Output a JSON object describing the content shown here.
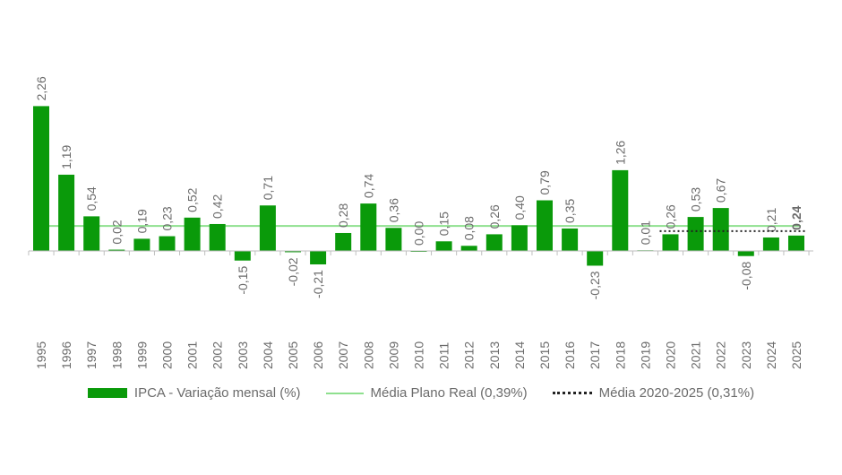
{
  "chart_data": {
    "type": "bar",
    "title": "",
    "xlabel": "",
    "ylabel": "",
    "ylim": [
      -0.23,
      2.26
    ],
    "grid": false,
    "legend_position": "bottom",
    "categories": [
      "1995",
      "1996",
      "1997",
      "1998",
      "1999",
      "2000",
      "2001",
      "2002",
      "2003",
      "2004",
      "2005",
      "2006",
      "2007",
      "2008",
      "2009",
      "2010",
      "2011",
      "2012",
      "2013",
      "2014",
      "2015",
      "2016",
      "2017",
      "2018",
      "2019",
      "2020",
      "2021",
      "2022",
      "2023",
      "2024",
      "2025"
    ],
    "series": [
      {
        "name": "IPCA - Variação mensal (%)",
        "values": [
          2.26,
          1.19,
          0.54,
          0.02,
          0.19,
          0.23,
          0.52,
          0.42,
          -0.15,
          0.71,
          -0.02,
          -0.21,
          0.28,
          0.74,
          0.36,
          0.0,
          0.15,
          0.08,
          0.26,
          0.4,
          0.79,
          0.35,
          -0.23,
          1.26,
          0.01,
          0.26,
          0.53,
          0.67,
          -0.08,
          0.21,
          0.24
        ],
        "labels": [
          "2,26",
          "1,19",
          "0,54",
          "0,02",
          "0,19",
          "0,23",
          "0,52",
          "0,42",
          "-0,15",
          "0,71",
          "-0,02",
          "-0,21",
          "0,28",
          "0,74",
          "0,36",
          "0,00",
          "0,15",
          "0,08",
          "0,26",
          "0,40",
          "0,79",
          "0,35",
          "-0,23",
          "1,26",
          "0,01",
          "0,26",
          "0,53",
          "0,67",
          "-0,08",
          "0,21",
          "0,24"
        ],
        "color": "#0a9a0a",
        "highlight_index": 30,
        "highlight_color": "#0a9a0a"
      }
    ],
    "reference_lines": [
      {
        "name": "Média Plano Real (0,39%)",
        "value": 0.39,
        "style": "solid",
        "color": "#8fe08f",
        "from_category": "1995",
        "to_category": "2025"
      },
      {
        "name": "Média 2020-2025 (0,31%)",
        "value": 0.31,
        "style": "dotted",
        "color": "#222222",
        "from_category": "2020",
        "to_category": "2025"
      }
    ]
  },
  "legend": {
    "bar_label": "IPCA - Variação mensal (%)",
    "line_label": "Média Plano Real (0,39%)",
    "dotted_label": "Média 2020-2025 (0,31%)"
  },
  "colors": {
    "bar": "#0a9a0a",
    "avg_line": "#8fe08f",
    "dotted": "#222222",
    "text": "#6b6b6b",
    "axis": "#bfbfbf"
  }
}
